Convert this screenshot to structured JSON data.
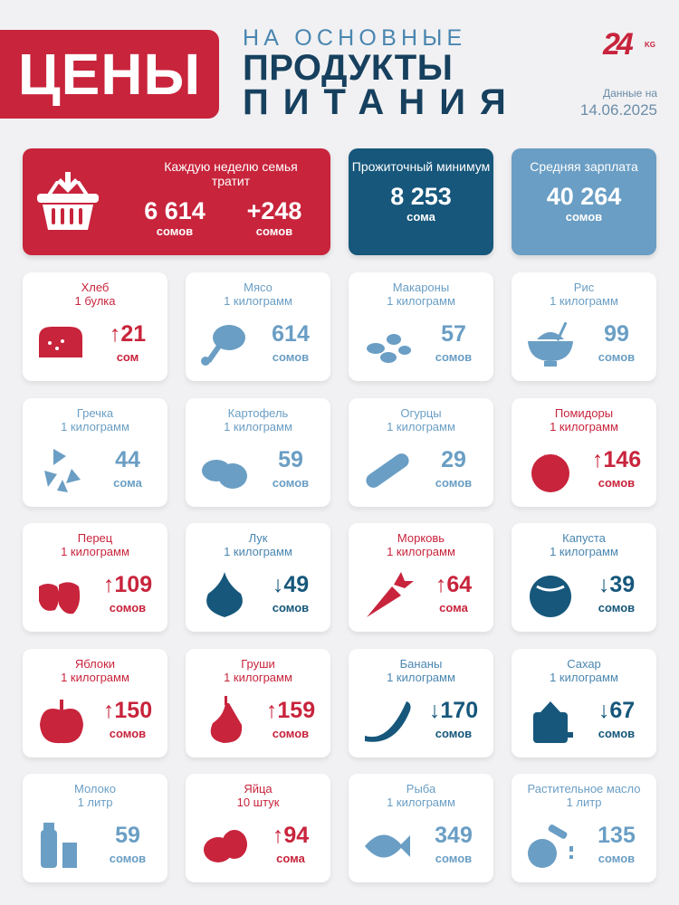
{
  "header": {
    "badge": "ЦЕНЫ",
    "line1": "НА ОСНОВНЫЕ",
    "line2": "ПРОДУКТЫ",
    "line3": "ПИТАНИЯ",
    "logo_num": "24",
    "logo_kg": "KG",
    "date_label": "Данные на",
    "date_value": "14.06.2025"
  },
  "summary": {
    "weekly": {
      "title": "Каждую неделю семья тратит",
      "value": "6 614",
      "unit": "сомов",
      "change": "+248",
      "change_unit": "сомов"
    },
    "minimum": {
      "title": "Прожиточный минимум",
      "value": "8 253",
      "unit": "сома"
    },
    "salary": {
      "title": "Средняя зарплата",
      "value": "40 264",
      "unit": "сомов"
    }
  },
  "colors": {
    "red": "#c8243c",
    "navy": "#16577b",
    "blue": "#6a9ec4"
  },
  "items": [
    {
      "name": "Хлеб",
      "qty": "1 булка",
      "value": "↑21",
      "unit": "сом",
      "icon": "bread-icon",
      "color": "red"
    },
    {
      "name": "Мясо",
      "qty": "1 килограмм",
      "value": "614",
      "unit": "сомов",
      "icon": "meat-icon",
      "color": "blue"
    },
    {
      "name": "Макароны",
      "qty": "1 килограмм",
      "value": "57",
      "unit": "сомов",
      "icon": "pasta-icon",
      "color": "blue"
    },
    {
      "name": "Рис",
      "qty": "1 килограмм",
      "value": "99",
      "unit": "сомов",
      "icon": "rice-icon",
      "color": "blue"
    },
    {
      "name": "Гречка",
      "qty": "1 килограмм",
      "value": "44",
      "unit": "сома",
      "icon": "buckwheat-icon",
      "color": "blue"
    },
    {
      "name": "Картофель",
      "qty": "1 килограмм",
      "value": "59",
      "unit": "сомов",
      "icon": "potato-icon",
      "color": "blue"
    },
    {
      "name": "Огурцы",
      "qty": "1 килограмм",
      "value": "29",
      "unit": "сомов",
      "icon": "cucumber-icon",
      "color": "blue"
    },
    {
      "name": "Помидоры",
      "qty": "1 килограмм",
      "value": "↑146",
      "unit": "сомов",
      "icon": "tomato-icon",
      "color": "red"
    },
    {
      "name": "Перец",
      "qty": "1 килограмм",
      "value": "↑109",
      "unit": "сомов",
      "icon": "pepper-icon",
      "color": "red"
    },
    {
      "name": "Лук",
      "qty": "1 килограмм",
      "value": "↓49",
      "unit": "сомов",
      "icon": "onion-icon",
      "color": "navy"
    },
    {
      "name": "Морковь",
      "qty": "1 килограмм",
      "value": "↑64",
      "unit": "сома",
      "icon": "carrot-icon",
      "color": "red"
    },
    {
      "name": "Капуста",
      "qty": "1 килограмм",
      "value": "↓39",
      "unit": "сомов",
      "icon": "cabbage-icon",
      "color": "navy"
    },
    {
      "name": "Яблоки",
      "qty": "1 килограмм",
      "value": "↑150",
      "unit": "сомов",
      "icon": "apple-icon",
      "color": "red"
    },
    {
      "name": "Груши",
      "qty": "1 килограмм",
      "value": "↑159",
      "unit": "сомов",
      "icon": "pear-icon",
      "color": "red"
    },
    {
      "name": "Бананы",
      "qty": "1 килограмм",
      "value": "↓170",
      "unit": "сомов",
      "icon": "banana-icon",
      "color": "navy"
    },
    {
      "name": "Сахар",
      "qty": "1 килограмм",
      "value": "↓67",
      "unit": "сомов",
      "icon": "sugar-icon",
      "color": "navy"
    },
    {
      "name": "Молоко",
      "qty": "1 литр",
      "value": "59",
      "unit": "сомов",
      "icon": "milk-icon",
      "color": "blue"
    },
    {
      "name": "Яйца",
      "qty": "10 штук",
      "value": "↑94",
      "unit": "сома",
      "icon": "eggs-icon",
      "color": "red"
    },
    {
      "name": "Рыба",
      "qty": "1 килограмм",
      "value": "349",
      "unit": "сомов",
      "icon": "fish-icon",
      "color": "blue"
    },
    {
      "name": "Растительное масло",
      "qty": "1 литр",
      "value": "135",
      "unit": "сомов",
      "icon": "oil-icon",
      "color": "blue"
    }
  ]
}
